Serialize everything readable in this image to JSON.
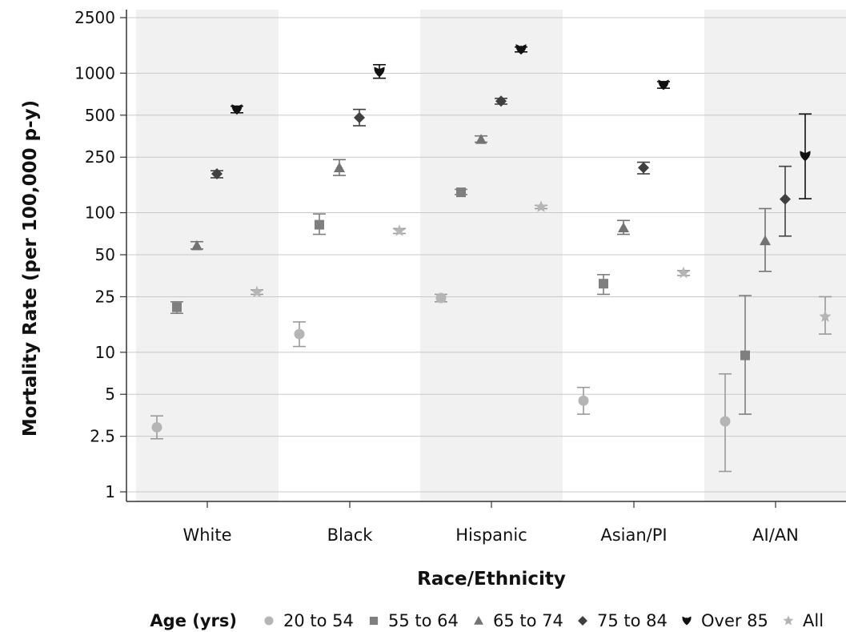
{
  "chart_data": {
    "type": "scatter",
    "xlabel": "Race/Ethnicity",
    "ylabel": "Mortality Rate (per 100,000 p-y)",
    "yscale": "log",
    "ylim": [
      0.83,
      3000
    ],
    "yticks": [
      1,
      2.5,
      5,
      10,
      25,
      50,
      100,
      250,
      500,
      1000,
      2500
    ],
    "ytick_labels": [
      "1",
      "2.5",
      "5",
      "10",
      "25",
      "50",
      "100",
      "250",
      "500",
      "1000",
      "2500"
    ],
    "grid": true,
    "shaded_bands": [
      "White",
      "Hispanic",
      "AI/AN"
    ],
    "categories": [
      "White",
      "Black",
      "Hispanic",
      "Asian/PI",
      "AI/AN"
    ],
    "legend_title": "Age (yrs)",
    "legend_position": "bottom",
    "series": [
      {
        "name": "20 to 54",
        "marker": "circle",
        "color": "#b5b5b5",
        "values": [
          2.9,
          13.5,
          24.5,
          4.5,
          3.2
        ],
        "lower": [
          2.4,
          11,
          23,
          3.6,
          1.4
        ],
        "upper": [
          3.5,
          16.5,
          26,
          5.6,
          7
        ]
      },
      {
        "name": "55 to 64",
        "marker": "square",
        "color": "#7f7f7f",
        "values": [
          21,
          82,
          140,
          31,
          9.5
        ],
        "lower": [
          19,
          70,
          135,
          26,
          3.6
        ],
        "upper": [
          23,
          98,
          147,
          36,
          25.5
        ]
      },
      {
        "name": "65 to 74",
        "marker": "triangle",
        "color": "#737373",
        "values": [
          58,
          210,
          335,
          78,
          63
        ],
        "lower": [
          55,
          185,
          320,
          70,
          38
        ],
        "upper": [
          62,
          240,
          355,
          88,
          107
        ]
      },
      {
        "name": "75 to 84",
        "marker": "diamond",
        "color": "#404040",
        "values": [
          190,
          480,
          630,
          210,
          125
        ],
        "lower": [
          178,
          420,
          600,
          190,
          68
        ],
        "upper": [
          200,
          550,
          660,
          230,
          215
        ]
      },
      {
        "name": "Over 85",
        "marker": "heart",
        "color": "#111111",
        "values": [
          550,
          1020,
          1480,
          825,
          255
        ],
        "lower": [
          520,
          920,
          1420,
          780,
          126
        ],
        "upper": [
          580,
          1150,
          1540,
          870,
          510
        ]
      },
      {
        "name": "All",
        "marker": "star",
        "color": "#b5b5b5",
        "values": [
          27,
          74,
          110,
          37,
          18
        ],
        "lower": [
          26,
          71,
          107,
          35.5,
          13.5
        ],
        "upper": [
          28,
          77,
          113,
          38.5,
          25
        ]
      }
    ]
  }
}
